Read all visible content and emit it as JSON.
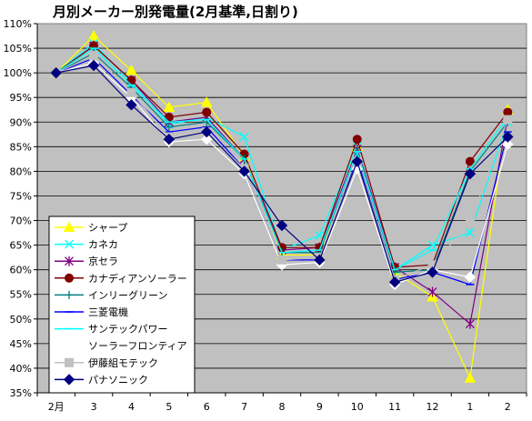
{
  "chart_data": {
    "type": "line",
    "title": "月別メーカー別発電量(2月基準,日割り)",
    "xlabel": "",
    "ylabel": "",
    "categories": [
      "2月",
      "3",
      "4",
      "5",
      "6",
      "7",
      "8",
      "9",
      "10",
      "11",
      "12",
      "1",
      "2"
    ],
    "ylim": [
      35,
      110
    ],
    "yticks": [
      35,
      40,
      45,
      50,
      55,
      60,
      65,
      70,
      75,
      80,
      85,
      90,
      95,
      100,
      105,
      110
    ],
    "ytick_suffix": "%",
    "grid": true,
    "legend_position": "left-bottom inside plot",
    "plot_background": "#c0c0c0",
    "series": [
      {
        "name": "シャープ",
        "color": "#ffff00",
        "marker": "triangle",
        "values": [
          100,
          107.5,
          100.5,
          93,
          94,
          83,
          63,
          63,
          85,
          59.5,
          54.5,
          38,
          92.5
        ]
      },
      {
        "name": "カネカ",
        "color": "#00ffff",
        "marker": "x",
        "values": [
          100,
          106,
          98,
          89.5,
          91,
          87,
          64,
          67,
          85,
          60,
          65,
          67.5,
          90
        ]
      },
      {
        "name": "京セラ",
        "color": "#800080",
        "marker": "star",
        "values": [
          100,
          105.5,
          98.5,
          90,
          91,
          82.5,
          64,
          64.5,
          84.5,
          60.5,
          55.5,
          49,
          91
        ]
      },
      {
        "name": "カナディアンソーラー",
        "color": "#800000",
        "marker": "circle",
        "values": [
          100,
          105.5,
          98.5,
          91,
          92,
          83.5,
          64.5,
          64.5,
          86.5,
          60.5,
          61,
          82,
          92
        ]
      },
      {
        "name": "インリーグリーン",
        "color": "#008080",
        "marker": "plus",
        "values": [
          100,
          104,
          97,
          89,
          90,
          82.5,
          63.5,
          63.5,
          84,
          59.5,
          60,
          80,
          90
        ]
      },
      {
        "name": "三菱電機",
        "color": "#0000ff",
        "marker": "dash",
        "values": [
          100,
          103,
          95.5,
          88,
          89,
          80.5,
          62,
          62,
          82.5,
          58,
          59.5,
          57,
          88
        ]
      },
      {
        "name": "サンテックパワー",
        "color": "#00ffff",
        "marker": "dash",
        "values": [
          100,
          105,
          97.5,
          90,
          90.5,
          82.5,
          63.5,
          64,
          84,
          60,
          64,
          80.5,
          91
        ]
      },
      {
        "name": "ソーラーフロンティア",
        "color": "#ffffff",
        "marker": "diamond",
        "values": [
          100,
          102,
          95,
          86,
          86.5,
          79.5,
          61,
          61.5,
          80.5,
          57,
          60,
          58.5,
          85.5
        ]
      },
      {
        "name": "伊藤組モテック",
        "color": "#c0c0c0",
        "marker": "square",
        "values": [
          100,
          103.5,
          96,
          87,
          88,
          80.5,
          62,
          62.5,
          82,
          58,
          61,
          69.5,
          90.5
        ]
      },
      {
        "name": "パナソニック",
        "color": "#000080",
        "marker": "diamond",
        "values": [
          100,
          101.5,
          93.5,
          86.5,
          88,
          80,
          69,
          62,
          82,
          57.5,
          59.5,
          79.5,
          87
        ]
      }
    ]
  }
}
